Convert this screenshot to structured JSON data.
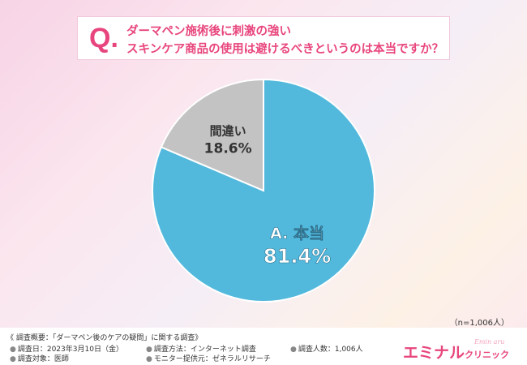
{
  "question": {
    "mark": "Q.",
    "line1": "ダーマペン施術後に刺激の強い",
    "line2": "スキンケア商品の使用は避けるべきというのは本当ですか？"
  },
  "chart_data": {
    "type": "pie",
    "title": "",
    "start": "12 o'clock, clockwise",
    "slices": [
      {
        "label_main": "A.",
        "label": "本当",
        "value": 81.4,
        "value_text": "81.4%",
        "color": "#52b9dd"
      },
      {
        "label_main": "",
        "label": "間違い",
        "value": 18.6,
        "value_text": "18.6%",
        "color": "#c3c3c3"
      }
    ]
  },
  "sample_note": "（n=1,006人）",
  "footer": {
    "survey_title": "《 調査概要：「ダーマペン後のケアの疑問」に関する調査》",
    "items": [
      "調査日：2023年3月10日（金）",
      "調査方法：インターネット調査",
      "調査人数：1,006人",
      "調査対象：医師",
      "モニター提供元：ゼネラルリサーチ"
    ],
    "brand": "エミナル",
    "brand_sub": "クリニック",
    "brand_script": "Emin aru"
  }
}
